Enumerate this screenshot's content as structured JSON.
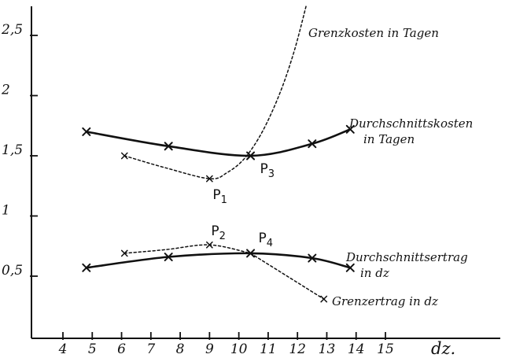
{
  "chart_data": {
    "type": "line",
    "xlabel": "dz.",
    "ylabel": "",
    "xlim": [
      3.3,
      16.0
    ],
    "ylim": [
      0.0,
      2.75
    ],
    "x_ticks": [
      4,
      5,
      6,
      7,
      8,
      9,
      10,
      11,
      12,
      13,
      14,
      15
    ],
    "x_tick_labels": [
      "4",
      "5",
      "6",
      "7",
      "8",
      "9",
      "10",
      "11",
      "12",
      "13",
      "14",
      "15"
    ],
    "y_ticks": [
      0.5,
      1,
      1.5,
      2,
      2.5
    ],
    "y_tick_labels": [
      "0,5",
      "1",
      "1,5",
      "2",
      "2,5"
    ],
    "grid": false,
    "series": [
      {
        "name": "Durchschnittskosten in Tagen",
        "label_lines": [
          "Durchschnittskosten",
          "in Tagen"
        ],
        "style": "solid",
        "points": [
          [
            4.8,
            1.7
          ],
          [
            7.6,
            1.58
          ],
          [
            10.4,
            1.5
          ],
          [
            12.5,
            1.6
          ],
          [
            13.8,
            1.72
          ]
        ]
      },
      {
        "name": "Grenzkosten in Tagen",
        "label_lines": [
          "Grenzkosten in Tagen"
        ],
        "style": "dotted",
        "points": [
          [
            6.1,
            1.5
          ],
          [
            9.0,
            1.31
          ]
        ],
        "curve": [
          [
            6.1,
            1.5
          ],
          [
            7.5,
            1.4
          ],
          [
            9.0,
            1.31
          ],
          [
            9.6,
            1.36
          ],
          [
            10.2,
            1.48
          ],
          [
            10.8,
            1.7
          ],
          [
            11.4,
            2.02
          ],
          [
            11.9,
            2.38
          ],
          [
            12.3,
            2.75
          ]
        ]
      },
      {
        "name": "Durchschnittsertrag in dz",
        "label_lines": [
          "Durchschnittsertrag",
          "in dz"
        ],
        "style": "solid",
        "points": [
          [
            4.8,
            0.57
          ],
          [
            7.6,
            0.66
          ],
          [
            10.4,
            0.69
          ],
          [
            12.5,
            0.65
          ],
          [
            13.8,
            0.57
          ]
        ]
      },
      {
        "name": "Grenzertrag in dz",
        "label_lines": [
          "Grenzertrag in dz"
        ],
        "style": "dotted",
        "points": [
          [
            6.1,
            0.69
          ],
          [
            9.0,
            0.76
          ],
          [
            12.9,
            0.31
          ]
        ],
        "curve": [
          [
            6.1,
            0.69
          ],
          [
            7.5,
            0.72
          ],
          [
            9.0,
            0.76
          ],
          [
            10.4,
            0.69
          ],
          [
            12.9,
            0.31
          ]
        ]
      }
    ],
    "annotations": [
      {
        "text": "P",
        "sub": "1",
        "x": 9.0,
        "y": 1.31
      },
      {
        "text": "P",
        "sub": "2",
        "x": 9.0,
        "y": 0.76
      },
      {
        "text": "P",
        "sub": "3",
        "x": 10.4,
        "y": 1.5
      },
      {
        "text": "P",
        "sub": "4",
        "x": 10.4,
        "y": 0.69
      }
    ]
  }
}
